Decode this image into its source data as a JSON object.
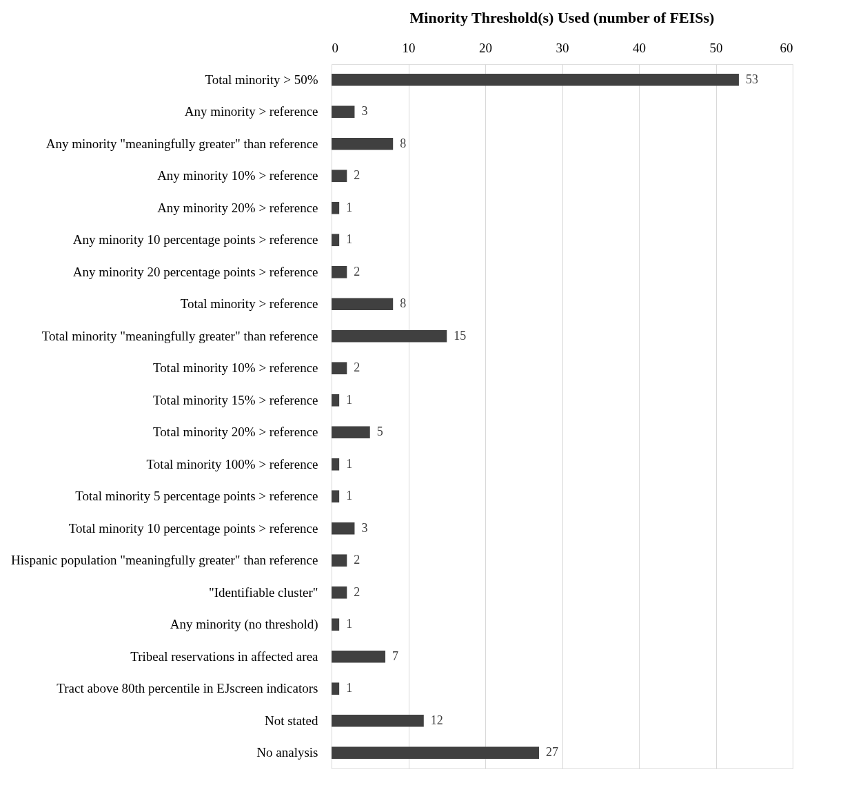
{
  "chart_data": {
    "type": "bar",
    "orientation": "horizontal",
    "title": "Minority Threshold(s) Used (number of FEISs)",
    "categories": [
      "Total minority > 50%",
      "Any minority > reference",
      "Any minority \"meaningfully greater\" than reference",
      "Any minority 10% > reference",
      "Any minority 20% > reference",
      "Any minority 10 percentage points > reference",
      "Any minority 20 percentage points > reference",
      "Total minority > reference",
      "Total minority \"meaningfully greater\" than reference",
      "Total minority 10% > reference",
      "Total minority 15% > reference",
      "Total minority 20% > reference",
      "Total minority 100% > reference",
      "Total minority 5 percentage points > reference",
      "Total minority 10 percentage points > reference",
      "Hispanic population \"meaningfully greater\" than reference",
      "\"Identifiable cluster\"",
      "Any minority (no threshold)",
      "Tribeal reservations in affected area",
      "Tract above 80th percentile in EJscreen indicators",
      "Not stated",
      "No analysis"
    ],
    "values": [
      53,
      3,
      8,
      2,
      1,
      1,
      2,
      8,
      15,
      2,
      1,
      5,
      1,
      1,
      3,
      2,
      2,
      1,
      7,
      1,
      12,
      27
    ],
    "color": "#404040",
    "xlim": [
      0,
      60
    ],
    "xticks": [
      0,
      10,
      20,
      30,
      40,
      50,
      60
    ],
    "grid": "x",
    "data_labels": true
  }
}
